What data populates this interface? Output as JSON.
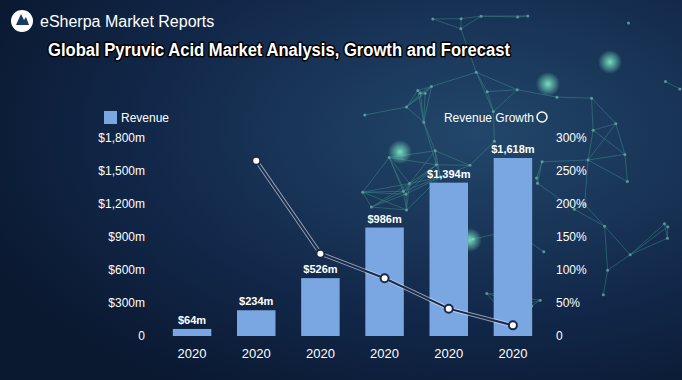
{
  "chart_data": {
    "type": "bar",
    "title": "Global Pyruvic Acid Market Analysis, Growth and Forecast",
    "source": "eSherpa Market Reports",
    "categories": [
      "2020",
      "2020",
      "2020",
      "2020",
      "2020",
      "2020"
    ],
    "series": [
      {
        "name": "Revenue",
        "type": "bar",
        "color": "#7aa6e2",
        "values": [
          64,
          234,
          526,
          986,
          1394,
          1618
        ],
        "value_labels": [
          "$64m",
          "$234m",
          "$526m",
          "$986m",
          "$1,394m",
          "$1,618m"
        ]
      },
      {
        "name": "Revenue Growth",
        "type": "line",
        "axis": "y2",
        "color": "#1b2a4a",
        "marker": "circle",
        "values": [
          null,
          265.6,
          124.8,
          87.5,
          41.4,
          16.1
        ]
      }
    ],
    "ylim": [
      0,
      1800
    ],
    "yticks": [
      0,
      {
        "value": 300,
        "label": "$300m"
      },
      {
        "value": 600,
        "label": "$600m"
      },
      {
        "value": 900,
        "label": "$900m"
      },
      {
        "value": 1200,
        "label": "$1,200m"
      },
      {
        "value": 1500,
        "label": "$1,500m"
      },
      {
        "value": 1800,
        "label": "$1,800m"
      }
    ],
    "y2lim": [
      0,
      300
    ],
    "y2ticks": [
      0,
      {
        "value": 50,
        "label": "50%"
      },
      {
        "value": 100,
        "label": "100%"
      },
      {
        "value": 150,
        "label": "150%"
      },
      {
        "value": 200,
        "label": "200%"
      },
      {
        "value": 250,
        "label": "250%"
      },
      {
        "value": 300,
        "label": "300%"
      }
    ],
    "grid": false,
    "legend": "top",
    "data_labels": true
  }
}
